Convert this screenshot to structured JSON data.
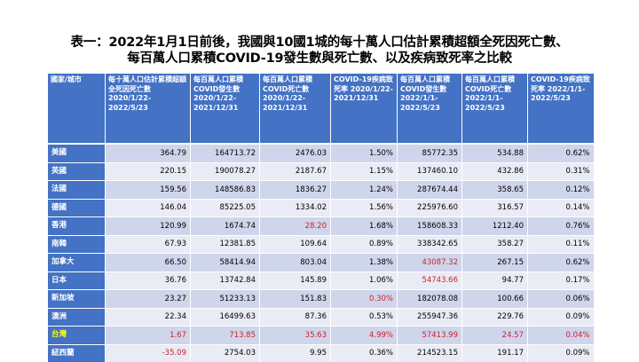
{
  "title_line1": "表一：2022年1月1日前後，我國與10國1城的每十萬人口估計累積超額全死因死亡數、",
  "title_line2": "每百萬人口累積COVID-19發生數與死亡數、以及疾病致死率之比較",
  "headers": [
    "國家/城市",
    "每十萬人口估計累積超額全死因死亡數 2020/1/22-2022/5/23",
    "每百萬人口累積COVID發生數 2020/1/22-2021/12/31",
    "每百萬人口累積COVID死亡數 2020/1/22-2021/12/31",
    "COVID-19疾病致死率 2020/1/22-2021/12/31",
    "每百萬人口累積COVID發生數 2022/1/1-2022/5/23",
    "每百萬人口累積COVID死亡數 2022/1/1-2022/5/23",
    "COVID-19疾病致死率 2022/1/1-2022/5/23"
  ],
  "rows": [
    {
      "name": "美國",
      "values": [
        "364.79",
        "164713.72",
        "2476.03",
        "1.50%",
        "85772.35",
        "534.88",
        "0.62%"
      ],
      "red": []
    },
    {
      "name": "英國",
      "values": [
        "220.15",
        "190078.27",
        "2187.67",
        "1.15%",
        "137460.10",
        "432.86",
        "0.31%"
      ],
      "red": []
    },
    {
      "name": "法國",
      "values": [
        "159.56",
        "148586.83",
        "1836.27",
        "1.24%",
        "287674.44",
        "358.65",
        "0.12%"
      ],
      "red": []
    },
    {
      "name": "德國",
      "values": [
        "146.04",
        "85225.05",
        "1334.02",
        "1.56%",
        "225976.60",
        "316.57",
        "0.14%"
      ],
      "red": []
    },
    {
      "name": "香港",
      "values": [
        "120.99",
        "1674.74",
        "28.20",
        "1.68%",
        "158608.33",
        "1212.40",
        "0.76%"
      ],
      "red": [
        2
      ]
    },
    {
      "name": "南韓",
      "values": [
        "67.93",
        "12381.85",
        "109.64",
        "0.89%",
        "338342.65",
        "358.27",
        "0.11%"
      ],
      "red": []
    },
    {
      "name": "加拿大",
      "values": [
        "66.50",
        "58414.94",
        "803.04",
        "1.38%",
        "43087.32",
        "267.15",
        "0.62%"
      ],
      "red": [
        4
      ]
    },
    {
      "name": "日本",
      "values": [
        "36.76",
        "13742.84",
        "145.89",
        "1.06%",
        "54743.66",
        "94.77",
        "0.17%"
      ],
      "red": [
        4
      ]
    },
    {
      "name": "新加坡",
      "values": [
        "23.27",
        "51233.13",
        "151.83",
        "0.30%",
        "182078.08",
        "100.66",
        "0.06%"
      ],
      "red": [
        3
      ]
    },
    {
      "name": "澳洲",
      "values": [
        "22.34",
        "16499.63",
        "87.36",
        "0.53%",
        "255947.36",
        "229.76",
        "0.09%"
      ],
      "red": []
    },
    {
      "name": "台灣",
      "values": [
        "1.67",
        "713.85",
        "35.63",
        "4.99%",
        "57413.99",
        "24.57",
        "0.04%"
      ],
      "red": [
        0,
        1,
        2,
        3,
        4,
        5,
        6
      ],
      "name_highlight": true
    },
    {
      "name": "紐西蘭",
      "values": [
        "-35.09",
        "2754.03",
        "9.95",
        "0.36%",
        "214523.15",
        "191.17",
        "0.09%"
      ],
      "red": [
        0
      ]
    }
  ]
}
